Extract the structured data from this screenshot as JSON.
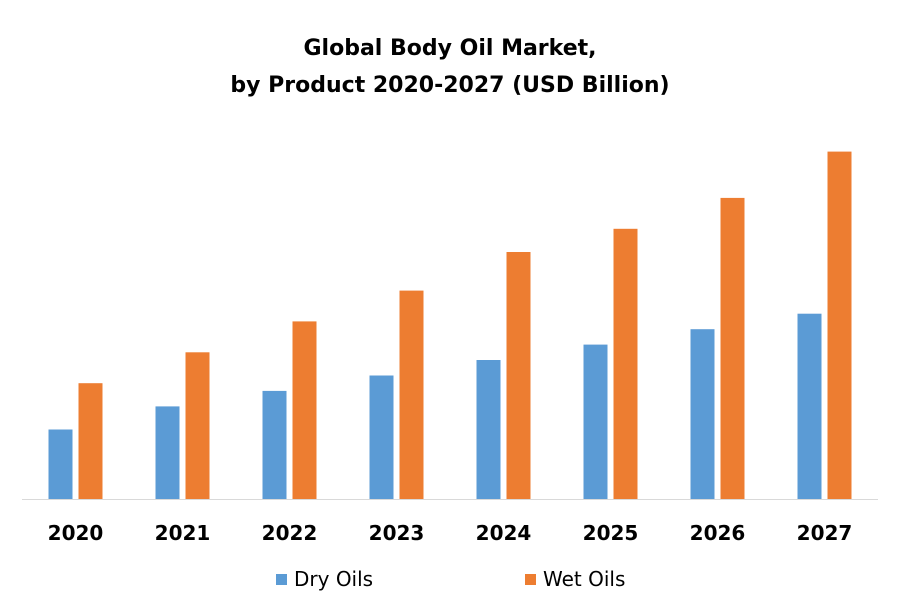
{
  "chart_data": {
    "type": "bar",
    "title": "Global Body Oil Market,",
    "subtitle": "by Product 2020-2027 (USD Billion)",
    "categories": [
      "2020",
      "2021",
      "2022",
      "2023",
      "2024",
      "2025",
      "2026",
      "2027"
    ],
    "series": [
      {
        "name": "Dry Oils",
        "color": "#5B9BD5",
        "values": [
          1.8,
          2.4,
          2.8,
          3.2,
          3.6,
          4.0,
          4.4,
          4.8
        ]
      },
      {
        "name": "Wet Oils",
        "color": "#ED7D31",
        "values": [
          3.0,
          3.8,
          4.6,
          5.4,
          6.4,
          7.0,
          7.8,
          9.0
        ]
      }
    ],
    "ylim": [
      0,
      10
    ],
    "grid": false,
    "legend_position": "bottom"
  }
}
